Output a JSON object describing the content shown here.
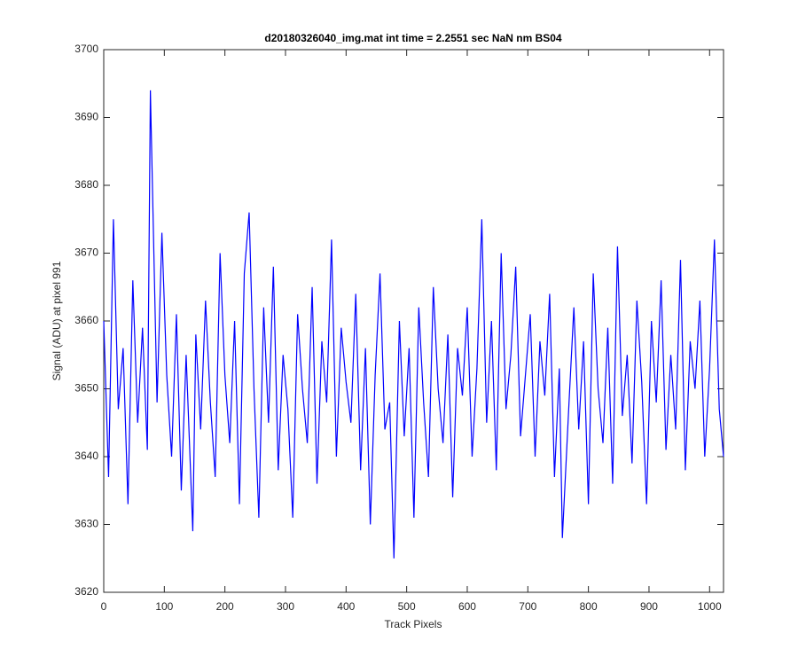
{
  "chart_data": {
    "type": "line",
    "title": "d20180326040_img.mat int time = 2.2551 sec  NaN nm BS04",
    "x_label": "Track Pixels",
    "y_label": "Signal (ADU) at pixel 991",
    "x": [
      0,
      8,
      16,
      24,
      32,
      40,
      48,
      56,
      64,
      72,
      77,
      88,
      96,
      104,
      112,
      120,
      128,
      136,
      147,
      152,
      160,
      168,
      176,
      184,
      192,
      200,
      208,
      216,
      224,
      232,
      240,
      248,
      256,
      264,
      272,
      280,
      288,
      296,
      304,
      312,
      320,
      328,
      336,
      344,
      352,
      360,
      368,
      376,
      384,
      392,
      400,
      408,
      416,
      424,
      432,
      440,
      448,
      456,
      464,
      472,
      479,
      488,
      496,
      504,
      512,
      520,
      528,
      536,
      544,
      552,
      560,
      568,
      576,
      584,
      592,
      600,
      608,
      616,
      624,
      632,
      640,
      648,
      656,
      664,
      672,
      680,
      688,
      696,
      704,
      712,
      720,
      728,
      736,
      744,
      752,
      757,
      768,
      776,
      784,
      792,
      800,
      808,
      816,
      824,
      832,
      840,
      848,
      856,
      864,
      872,
      880,
      888,
      896,
      904,
      912,
      920,
      928,
      936,
      944,
      952,
      960,
      968,
      976,
      984,
      992,
      1000,
      1008,
      1016,
      1023
    ],
    "series": [
      {
        "name": "Signal",
        "color": "#0000ff",
        "values": [
          3660,
          3637,
          3675,
          3647,
          3656,
          3633,
          3666,
          3645,
          3659,
          3641,
          3694,
          3648,
          3673,
          3652,
          3640,
          3661,
          3635,
          3655,
          3629,
          3658,
          3644,
          3663,
          3648,
          3637,
          3670,
          3652,
          3642,
          3660,
          3633,
          3667,
          3676,
          3650,
          3631,
          3662,
          3645,
          3668,
          3638,
          3655,
          3647,
          3631,
          3661,
          3650,
          3642,
          3665,
          3636,
          3657,
          3648,
          3672,
          3640,
          3659,
          3651,
          3645,
          3664,
          3638,
          3656,
          3630,
          3652,
          3667,
          3644,
          3648,
          3625,
          3660,
          3643,
          3656,
          3631,
          3662,
          3648,
          3637,
          3665,
          3650,
          3642,
          3658,
          3634,
          3656,
          3649,
          3662,
          3640,
          3653,
          3675,
          3645,
          3660,
          3638,
          3670,
          3647,
          3655,
          3668,
          3643,
          3652,
          3661,
          3640,
          3657,
          3649,
          3664,
          3637,
          3653,
          3628,
          3648,
          3662,
          3644,
          3657,
          3633,
          3667,
          3650,
          3642,
          3659,
          3636,
          3671,
          3646,
          3655,
          3639,
          3663,
          3651,
          3633,
          3660,
          3648,
          3666,
          3641,
          3655,
          3644,
          3669,
          3638,
          3657,
          3650,
          3663,
          3640,
          3653,
          3672,
          3647,
          3640
        ]
      }
    ],
    "xlim": [
      0,
      1023
    ],
    "ylim": [
      3620,
      3700
    ],
    "xticks": [
      0,
      100,
      200,
      300,
      400,
      500,
      600,
      700,
      800,
      900,
      1000
    ],
    "yticks": [
      3620,
      3630,
      3640,
      3650,
      3660,
      3670,
      3680,
      3690,
      3700
    ],
    "grid": false
  }
}
